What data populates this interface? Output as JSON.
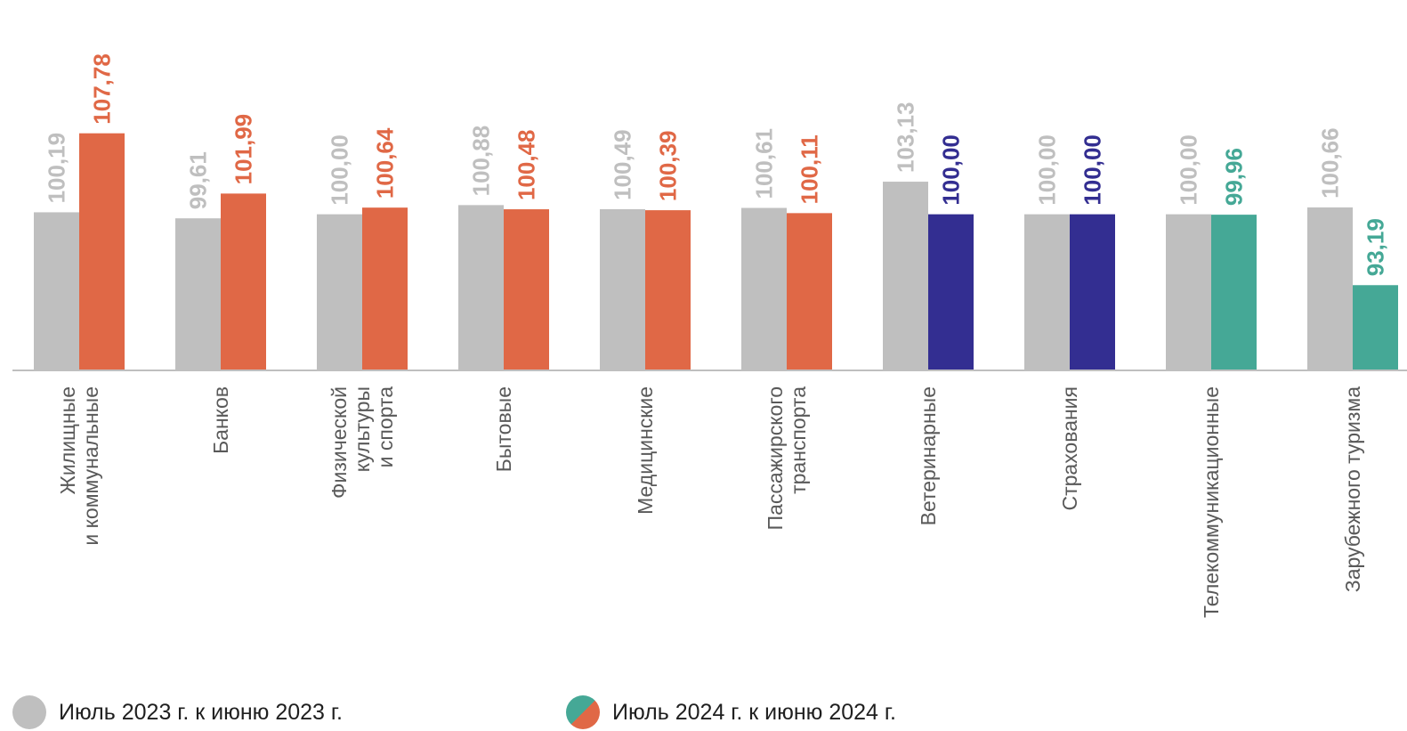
{
  "chart_data": {
    "type": "bar",
    "categories": [
      [
        "Жилищные",
        "и коммунальные"
      ],
      [
        "Банков"
      ],
      [
        "Физической",
        "культуры",
        "и спорта"
      ],
      [
        "Бытовые"
      ],
      [
        "Медицинские"
      ],
      [
        "Пассажирского",
        "транспорта"
      ],
      [
        "Ветеринарные"
      ],
      [
        "Страхования"
      ],
      [
        "Телекоммуникационные"
      ],
      [
        "Зарубежного туризма"
      ]
    ],
    "series": [
      {
        "name": "Июль 2023 г. к июню 2023 г.",
        "values": [
          100.19,
          99.61,
          100.0,
          100.88,
          100.49,
          100.61,
          103.13,
          100.0,
          100.0,
          100.66
        ],
        "labels": [
          "100,19",
          "99,61",
          "100,00",
          "100,88",
          "100,49",
          "100,61",
          "103,13",
          "100,00",
          "100,00",
          "100,66"
        ]
      },
      {
        "name": "Июль 2024 г. к июню 2024 г.",
        "values": [
          107.78,
          101.99,
          100.64,
          100.48,
          100.39,
          100.11,
          100.0,
          100.0,
          99.96,
          93.19
        ],
        "labels": [
          "107,78",
          "101,99",
          "100,64",
          "100,48",
          "100,39",
          "100,11",
          "100,00",
          "100,00",
          "99,96",
          "93,19"
        ]
      }
    ],
    "ylim": [
      85,
      110
    ],
    "grid": false,
    "legend_position": "bottom",
    "colors": {
      "series_2023": "#bfbfbf",
      "label_2023": "#bfbfbf",
      "increase": "#e06846",
      "unchanged": "#332e91",
      "decrease": "#45a896",
      "axis": "#bfbfbf",
      "category_text": "#595959"
    }
  },
  "legend": {
    "item_2023": "Июль 2023 г. к июню 2023 г.",
    "item_2024": "Июль 2024 г. к июню 2024 г."
  }
}
